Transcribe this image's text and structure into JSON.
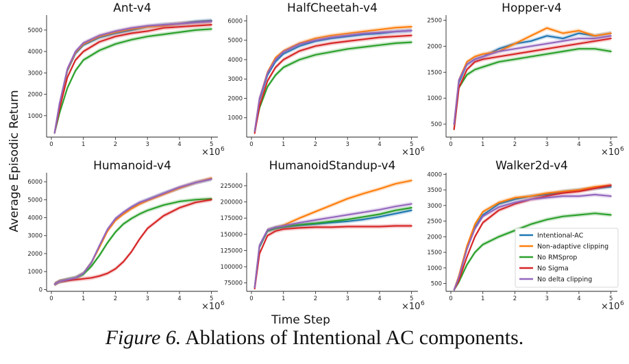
{
  "figure": {
    "ylabel": "Average Episodic Return",
    "xlabel": "Time Step",
    "caption_label": "Figure 6.",
    "caption_text": "Ablations of Intentional AC components.",
    "x_multiplier_base": "×10",
    "x_multiplier_exp": "6"
  },
  "legend": {
    "entries": [
      {
        "name": "Intentional-AC",
        "color": "#1f77b4"
      },
      {
        "name": "Non-adaptive clipping",
        "color": "#ff7f0e"
      },
      {
        "name": "No RMSprop",
        "color": "#2ca02c"
      },
      {
        "name": "No Sigma",
        "color": "#d62728"
      },
      {
        "name": "No delta clipping",
        "color": "#9467bd"
      }
    ]
  },
  "chart_data": [
    {
      "type": "line",
      "title": "Ant-v4",
      "x": [
        0.1,
        0.25,
        0.5,
        0.75,
        1.0,
        1.5,
        2.0,
        2.5,
        3.0,
        3.5,
        4.0,
        4.5,
        5.0
      ],
      "xticks": [
        "0",
        "1",
        "2",
        "3",
        "4",
        "5"
      ],
      "yticks": [
        1000,
        2000,
        3000,
        4000,
        5000
      ],
      "ylim": [
        0,
        5700
      ],
      "xlim": [
        -0.15,
        5.2
      ],
      "series": [
        {
          "name": "Intentional-AC",
          "values": [
            200,
            1500,
            3100,
            3900,
            4300,
            4650,
            4850,
            5000,
            5150,
            5250,
            5300,
            5400,
            5450
          ]
        },
        {
          "name": "Non-adaptive clipping",
          "values": [
            200,
            1500,
            3150,
            3950,
            4350,
            4700,
            4900,
            5050,
            5150,
            5200,
            5300,
            5350,
            5400
          ]
        },
        {
          "name": "No RMSprop",
          "values": [
            200,
            1100,
            2300,
            3100,
            3600,
            4050,
            4350,
            4550,
            4700,
            4800,
            4900,
            5000,
            5050
          ]
        },
        {
          "name": "No Sigma",
          "values": [
            200,
            1300,
            2800,
            3600,
            4000,
            4450,
            4700,
            4850,
            4950,
            5100,
            5150,
            5200,
            5250
          ]
        },
        {
          "name": "No delta clipping",
          "values": [
            200,
            1550,
            3200,
            4000,
            4400,
            4750,
            4950,
            5100,
            5200,
            5250,
            5300,
            5350,
            5400
          ]
        }
      ]
    },
    {
      "type": "line",
      "title": "HalfCheetah-v4",
      "x": [
        0.1,
        0.25,
        0.5,
        0.75,
        1.0,
        1.5,
        2.0,
        2.5,
        3.0,
        3.5,
        4.0,
        4.5,
        5.0
      ],
      "xticks": [
        "0",
        "1",
        "2",
        "3",
        "4",
        "5"
      ],
      "yticks": [
        1000,
        2000,
        3000,
        4000,
        5000,
        6000
      ],
      "ylim": [
        0,
        6300
      ],
      "xlim": [
        -0.15,
        5.2
      ],
      "series": [
        {
          "name": "Intentional-AC",
          "values": [
            300,
            1900,
            3200,
            3900,
            4300,
            4700,
            4950,
            5100,
            5200,
            5300,
            5350,
            5450,
            5500
          ]
        },
        {
          "name": "Non-adaptive clipping",
          "values": [
            300,
            2000,
            3350,
            4100,
            4450,
            4850,
            5100,
            5250,
            5350,
            5450,
            5550,
            5650,
            5700
          ]
        },
        {
          "name": "No RMSprop",
          "values": [
            300,
            1500,
            2600,
            3200,
            3600,
            4000,
            4250,
            4400,
            4550,
            4650,
            4750,
            4850,
            4900
          ]
        },
        {
          "name": "No Sigma",
          "values": [
            200,
            1600,
            2900,
            3600,
            4000,
            4450,
            4700,
            4850,
            4950,
            5050,
            5150,
            5200,
            5250
          ]
        },
        {
          "name": "No delta clipping",
          "values": [
            300,
            2000,
            3300,
            4000,
            4400,
            4800,
            5000,
            5150,
            5250,
            5350,
            5400,
            5450,
            5500
          ]
        }
      ]
    },
    {
      "type": "line",
      "title": "Hopper-v4",
      "x": [
        0.1,
        0.25,
        0.5,
        0.75,
        1.0,
        1.5,
        2.0,
        2.5,
        3.0,
        3.5,
        4.0,
        4.5,
        5.0
      ],
      "xticks": [
        "0",
        "1",
        "2",
        "3",
        "4",
        "5"
      ],
      "yticks": [
        500,
        1000,
        1500,
        2000,
        2500
      ],
      "ylim": [
        250,
        2600
      ],
      "xlim": [
        -0.15,
        5.2
      ],
      "series": [
        {
          "name": "Intentional-AC",
          "values": [
            500,
            1300,
            1650,
            1750,
            1800,
            1950,
            2050,
            2100,
            2200,
            2150,
            2250,
            2200,
            2250
          ]
        },
        {
          "name": "Non-adaptive clipping",
          "values": [
            500,
            1350,
            1700,
            1800,
            1850,
            1900,
            2050,
            2200,
            2350,
            2250,
            2300,
            2200,
            2250
          ]
        },
        {
          "name": "No RMSprop",
          "values": [
            400,
            1200,
            1450,
            1550,
            1600,
            1700,
            1750,
            1800,
            1850,
            1900,
            1950,
            1950,
            1900
          ]
        },
        {
          "name": "No Sigma",
          "values": [
            400,
            1200,
            1550,
            1700,
            1750,
            1800,
            1850,
            1900,
            1950,
            2000,
            2050,
            2100,
            2150
          ]
        },
        {
          "name": "No delta clipping",
          "values": [
            500,
            1350,
            1650,
            1750,
            1800,
            1900,
            1950,
            2000,
            2050,
            2100,
            2150,
            2150,
            2200
          ]
        }
      ]
    },
    {
      "type": "line",
      "title": "Humanoid-v4",
      "x": [
        0.1,
        0.25,
        0.5,
        0.75,
        1.0,
        1.25,
        1.5,
        1.75,
        2.0,
        2.25,
        2.5,
        2.75,
        3.0,
        3.5,
        4.0,
        4.5,
        5.0
      ],
      "xticks": [
        "0",
        "1",
        "2",
        "3",
        "4",
        "5"
      ],
      "yticks": [
        0,
        1000,
        2000,
        3000,
        4000,
        5000,
        6000
      ],
      "ylim": [
        -100,
        6500
      ],
      "xlim": [
        -0.15,
        5.2
      ],
      "series": [
        {
          "name": "Intentional-AC",
          "values": [
            300,
            450,
            550,
            650,
            900,
            1500,
            2400,
            3300,
            3900,
            4250,
            4550,
            4800,
            5000,
            5350,
            5650,
            5950,
            6150
          ]
        },
        {
          "name": "Non-adaptive clipping",
          "values": [
            300,
            450,
            550,
            650,
            900,
            1500,
            2350,
            3250,
            3850,
            4200,
            4500,
            4750,
            4950,
            5300,
            5650,
            5950,
            6200
          ]
        },
        {
          "name": "No RMSprop",
          "values": [
            300,
            450,
            550,
            650,
            850,
            1300,
            1900,
            2600,
            3200,
            3650,
            3950,
            4200,
            4400,
            4700,
            4900,
            5000,
            5050
          ]
        },
        {
          "name": "No Sigma",
          "values": [
            300,
            450,
            500,
            550,
            600,
            650,
            750,
            900,
            1150,
            1550,
            2100,
            2800,
            3400,
            4100,
            4550,
            4850,
            5000
          ]
        },
        {
          "name": "No delta clipping",
          "values": [
            300,
            450,
            550,
            650,
            900,
            1500,
            2450,
            3350,
            3950,
            4300,
            4600,
            4850,
            5000,
            5350,
            5700,
            5950,
            6150
          ]
        }
      ]
    },
    {
      "type": "line",
      "title": "HumanoidStandup-v4",
      "x": [
        0.1,
        0.25,
        0.5,
        0.75,
        1.0,
        1.5,
        2.0,
        2.5,
        3.0,
        3.5,
        4.0,
        4.5,
        5.0
      ],
      "xticks": [
        "0",
        "1",
        "2",
        "3",
        "4",
        "5"
      ],
      "yticks": [
        75000,
        100000,
        125000,
        150000,
        175000,
        200000,
        225000
      ],
      "ylim": [
        62000,
        245000
      ],
      "xlim": [
        -0.15,
        5.2
      ],
      "series": [
        {
          "name": "Intentional-AC",
          "values": [
            68000,
            130000,
            155000,
            159000,
            161000,
            164000,
            166000,
            168000,
            170000,
            173000,
            177000,
            182000,
            187000
          ]
        },
        {
          "name": "Non-adaptive clipping",
          "values": [
            68000,
            132000,
            156000,
            160000,
            164000,
            175000,
            185000,
            195000,
            205000,
            213000,
            220000,
            228000,
            233000
          ]
        },
        {
          "name": "No RMSprop",
          "values": [
            68000,
            132000,
            156000,
            160000,
            162000,
            165000,
            167000,
            170000,
            173000,
            177000,
            181000,
            187000,
            191000
          ]
        },
        {
          "name": "No Sigma",
          "values": [
            66000,
            120000,
            148000,
            155000,
            158000,
            160000,
            161000,
            161000,
            162000,
            162000,
            162000,
            163000,
            163000
          ]
        },
        {
          "name": "No delta clipping",
          "values": [
            68000,
            133000,
            157000,
            161000,
            163000,
            168000,
            172000,
            176000,
            180000,
            184000,
            188000,
            193000,
            197000
          ]
        }
      ]
    },
    {
      "type": "line",
      "title": "Walker2d-v4",
      "x": [
        0.1,
        0.25,
        0.5,
        0.75,
        1.0,
        1.5,
        2.0,
        2.5,
        3.0,
        3.5,
        4.0,
        4.5,
        5.0
      ],
      "xticks": [
        "0",
        "1",
        "2",
        "3",
        "4",
        "5"
      ],
      "yticks": [
        500,
        1000,
        1500,
        2000,
        2500,
        3000,
        3500,
        4000
      ],
      "ylim": [
        250,
        4050
      ],
      "xlim": [
        -0.15,
        5.2
      ],
      "series": [
        {
          "name": "Intentional-AC",
          "values": [
            300,
            700,
            1600,
            2300,
            2700,
            3050,
            3200,
            3300,
            3350,
            3450,
            3500,
            3550,
            3600
          ]
        },
        {
          "name": "Non-adaptive clipping",
          "values": [
            300,
            750,
            1700,
            2400,
            2800,
            3100,
            3250,
            3300,
            3400,
            3450,
            3500,
            3600,
            3650
          ]
        },
        {
          "name": "No RMSprop",
          "values": [
            300,
            550,
            1100,
            1500,
            1750,
            2000,
            2200,
            2400,
            2550,
            2650,
            2700,
            2750,
            2700
          ]
        },
        {
          "name": "No Sigma",
          "values": [
            300,
            600,
            1350,
            2000,
            2450,
            2850,
            3050,
            3200,
            3300,
            3400,
            3450,
            3550,
            3650
          ]
        },
        {
          "name": "No delta clipping",
          "values": [
            300,
            700,
            1600,
            2250,
            2650,
            2950,
            3100,
            3200,
            3250,
            3300,
            3300,
            3350,
            3300
          ]
        }
      ]
    }
  ]
}
